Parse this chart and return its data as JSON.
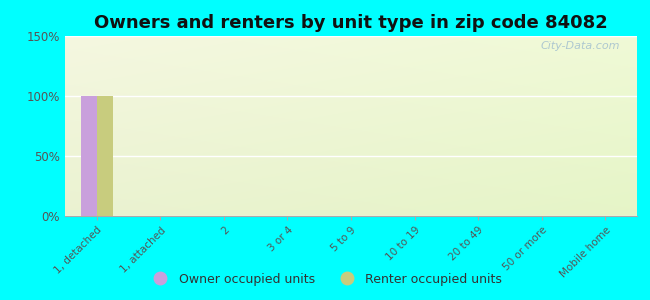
{
  "title": "Owners and renters by unit type in zip code 84082",
  "categories": [
    "1, detached",
    "1, attached",
    "2",
    "3 or 4",
    "5 to 9",
    "10 to 19",
    "20 to 49",
    "50 or more",
    "Mobile home"
  ],
  "owner_values": [
    100,
    0,
    0,
    0,
    0,
    0,
    0,
    0,
    0
  ],
  "renter_values": [
    100,
    0,
    0,
    0,
    0,
    0,
    0,
    0,
    0
  ],
  "owner_color": "#c9a0dc",
  "renter_color": "#c8cc7e",
  "ylim": [
    0,
    150
  ],
  "yticks": [
    0,
    50,
    100,
    150
  ],
  "ytick_labels": [
    "0%",
    "50%",
    "100%",
    "150%"
  ],
  "background_color": "#00ffff",
  "watermark": "City-Data.com",
  "legend_owner": "Owner occupied units",
  "legend_renter": "Renter occupied units",
  "title_fontsize": 13,
  "bar_width": 0.25
}
